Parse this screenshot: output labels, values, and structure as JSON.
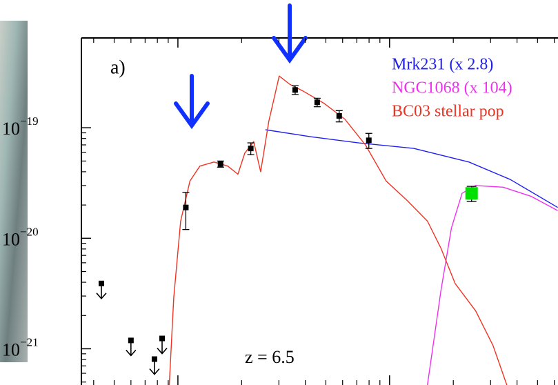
{
  "chart_data": {
    "type": "line",
    "panel_label": "a)",
    "annotation": "z = 6.5",
    "log_x": true,
    "log_y": true,
    "xlim": [
      0.35,
      62
    ],
    "xticks": [
      1,
      10
    ],
    "ylim": [
      4.7e-22,
      6.5e-19
    ],
    "yticks": [
      {
        "value": 1e-19,
        "label": "10",
        "exponent": "−19"
      },
      {
        "value": 1e-20,
        "label": "10",
        "exponent": "−20"
      },
      {
        "value": 1e-21,
        "label": "10",
        "exponent": "−21"
      }
    ],
    "series": [
      {
        "name": "Mrk231 (x 2.8)",
        "color": "#2020ee",
        "x": [
          2.59,
          4.22,
          7.13,
          13.0,
          23.7,
          37.2,
          62.3
        ],
        "values": [
          9.6e-20,
          8.3e-20,
          7.3e-20,
          6.5e-20,
          4.9e-20,
          3.4e-20,
          1.9e-20
        ]
      },
      {
        "name": "NGC1068 (x 104)",
        "color": "#ee30ee",
        "x": [
          15.1,
          17.5,
          19.6,
          22.0,
          25.5,
          34.4,
          46.5,
          62.3
        ],
        "values": [
          4.7e-22,
          3.4e-21,
          1.24e-20,
          2.55e-20,
          3e-20,
          2.9e-20,
          2.4e-20,
          1.78e-20
        ]
      },
      {
        "name": "BC03 stellar pop",
        "color": "#ee3322",
        "x": [
          0.91,
          0.956,
          1.03,
          1.14,
          1.27,
          1.48,
          1.72,
          1.92,
          2.07,
          2.28,
          2.46,
          2.69,
          3.01,
          3.37,
          3.92,
          4.91,
          6.14,
          7.69,
          9.63,
          12.1,
          15.1,
          17.5,
          20.4,
          25.5,
          30.8,
          35.8
        ],
        "values": [
          4.7e-22,
          2.9e-21,
          1.43e-20,
          3.3e-20,
          4.5e-20,
          4.9e-20,
          4.5e-20,
          3.8e-20,
          5.9e-20,
          7.5e-20,
          4e-20,
          1.15e-19,
          2.94e-19,
          2.48e-19,
          2.14e-19,
          1.66e-19,
          1.2e-19,
          7e-20,
          3.3e-20,
          2.2e-20,
          1.43e-20,
          8.1e-21,
          3.9e-21,
          2.2e-21,
          1.07e-21,
          4.7e-22
        ]
      }
    ],
    "points": {
      "color": "#000000",
      "x": [
        1.09,
        1.59,
        2.21,
        3.58,
        4.55,
        5.78,
        7.98
      ],
      "values": [
        1.9e-20,
        4.7e-20,
        6.5e-20,
        2.2e-19,
        1.7e-19,
        1.28e-19,
        7.7e-20
      ],
      "errors": [
        7e-21,
        3e-21,
        8e-21,
        2e-20,
        1.5e-20,
        1.5e-20,
        1.2e-20
      ]
    },
    "highlight": {
      "color": "#00e000",
      "x": 24.4,
      "value": 2.55e-20,
      "error": 4e-21
    },
    "upper_limits": {
      "color": "#000000",
      "x": [
        0.435,
        0.6,
        0.775,
        0.842
      ],
      "values": [
        3.9e-21,
        1.19e-21,
        8.06e-22,
        1.24e-21
      ]
    }
  }
}
